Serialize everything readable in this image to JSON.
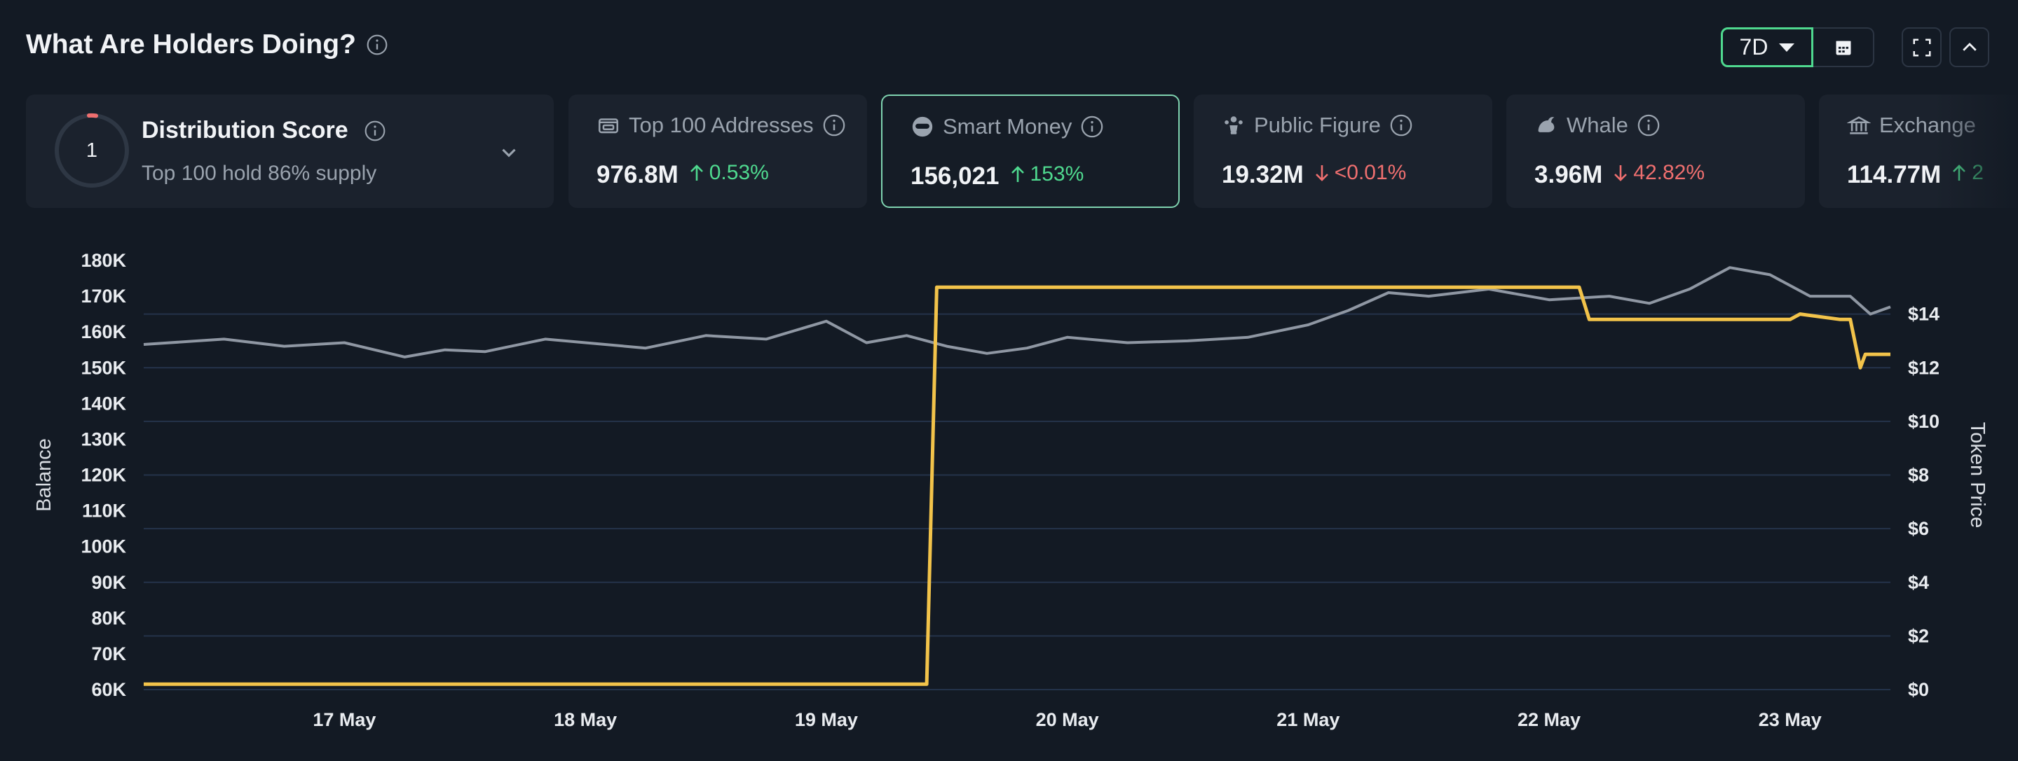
{
  "header": {
    "title": "What Are Holders Doing?",
    "period": "7D"
  },
  "distribution": {
    "score": "1",
    "title": "Distribution Score",
    "subtitle": "Top 100 hold 86% supply"
  },
  "cards": [
    {
      "label": "Top 100 Addresses",
      "value": "976.8M",
      "delta": "0.53%",
      "direction": "up",
      "icon": "wallet-icon"
    },
    {
      "label": "Smart Money",
      "value": "156,021",
      "delta": "153%",
      "direction": "up",
      "icon": "smart-money-icon",
      "selected": true
    },
    {
      "label": "Public Figure",
      "value": "19.32M",
      "delta": "<0.01%",
      "direction": "down",
      "icon": "public-figure-icon"
    },
    {
      "label": "Whale",
      "value": "3.96M",
      "delta": "42.82%",
      "direction": "down",
      "icon": "whale-icon"
    },
    {
      "label": "Exchange",
      "value": "114.77M",
      "delta": "2",
      "direction": "up",
      "icon": "bank-icon"
    }
  ],
  "colors": {
    "background": "#131a24",
    "card": "#1b222d",
    "accent": "#4fd98f",
    "down": "#ef6f6f",
    "balance_line": "#8f97a3",
    "price_line": "#f2c34a",
    "grid": "#24334a"
  },
  "chart_data": {
    "type": "line",
    "ylabel": "Balance",
    "y2label": "Token Price",
    "ylim": [
      60000,
      180000
    ],
    "y2lim": [
      0,
      16
    ],
    "yticks": [
      "60K",
      "70K",
      "80K",
      "90K",
      "100K",
      "110K",
      "120K",
      "130K",
      "140K",
      "150K",
      "160K",
      "170K",
      "180K"
    ],
    "y2ticks": [
      "$0",
      "$2",
      "$4",
      "$6",
      "$8",
      "$10",
      "$12",
      "$14"
    ],
    "xticks": [
      "17 May",
      "18 May",
      "19 May",
      "20 May",
      "21 May",
      "22 May",
      "23 May"
    ],
    "xlim": [
      "16 May 04:00",
      "23 May 10:00"
    ],
    "series": [
      {
        "name": "Balance",
        "x": [
          "16 May 04:00",
          "16 May 12:00",
          "16 May 18:00",
          "17 May 00:00",
          "17 May 06:00",
          "17 May 10:00",
          "17 May 14:00",
          "17 May 20:00",
          "18 May 00:00",
          "18 May 06:00",
          "18 May 12:00",
          "18 May 18:00",
          "19 May 00:00",
          "19 May 04:00",
          "19 May 08:00",
          "19 May 12:00",
          "19 May 16:00",
          "19 May 20:00",
          "20 May 00:00",
          "20 May 06:00",
          "20 May 12:00",
          "20 May 18:00",
          "21 May 00:00",
          "21 May 04:00",
          "21 May 08:00",
          "21 May 12:00",
          "21 May 18:00",
          "22 May 00:00",
          "22 May 06:00",
          "22 May 10:00",
          "22 May 14:00",
          "22 May 18:00",
          "22 May 22:00",
          "23 May 02:00",
          "23 May 06:00",
          "23 May 08:00",
          "23 May 10:00"
        ],
        "y": [
          156500,
          158000,
          156000,
          157000,
          153000,
          155000,
          154500,
          158000,
          157000,
          155500,
          159000,
          158000,
          163000,
          157000,
          159000,
          156000,
          154000,
          155500,
          158500,
          157000,
          157500,
          158500,
          162000,
          166000,
          171000,
          170000,
          172000,
          169000,
          170000,
          168000,
          172000,
          178000,
          176000,
          170000,
          170000,
          165000,
          167000
        ]
      },
      {
        "name": "Token Price",
        "x": [
          "16 May 04:00",
          "19 May 10:00",
          "19 May 11:00",
          "22 May 03:00",
          "22 May 04:00",
          "23 May 00:00",
          "23 May 01:00",
          "23 May 05:00",
          "23 May 06:00",
          "23 May 07:00",
          "23 May 07:30",
          "23 May 10:00"
        ],
        "y": [
          0.2,
          0.2,
          15.0,
          15.0,
          13.8,
          13.8,
          14.0,
          13.8,
          13.8,
          12.0,
          12.5,
          12.5
        ]
      }
    ]
  }
}
